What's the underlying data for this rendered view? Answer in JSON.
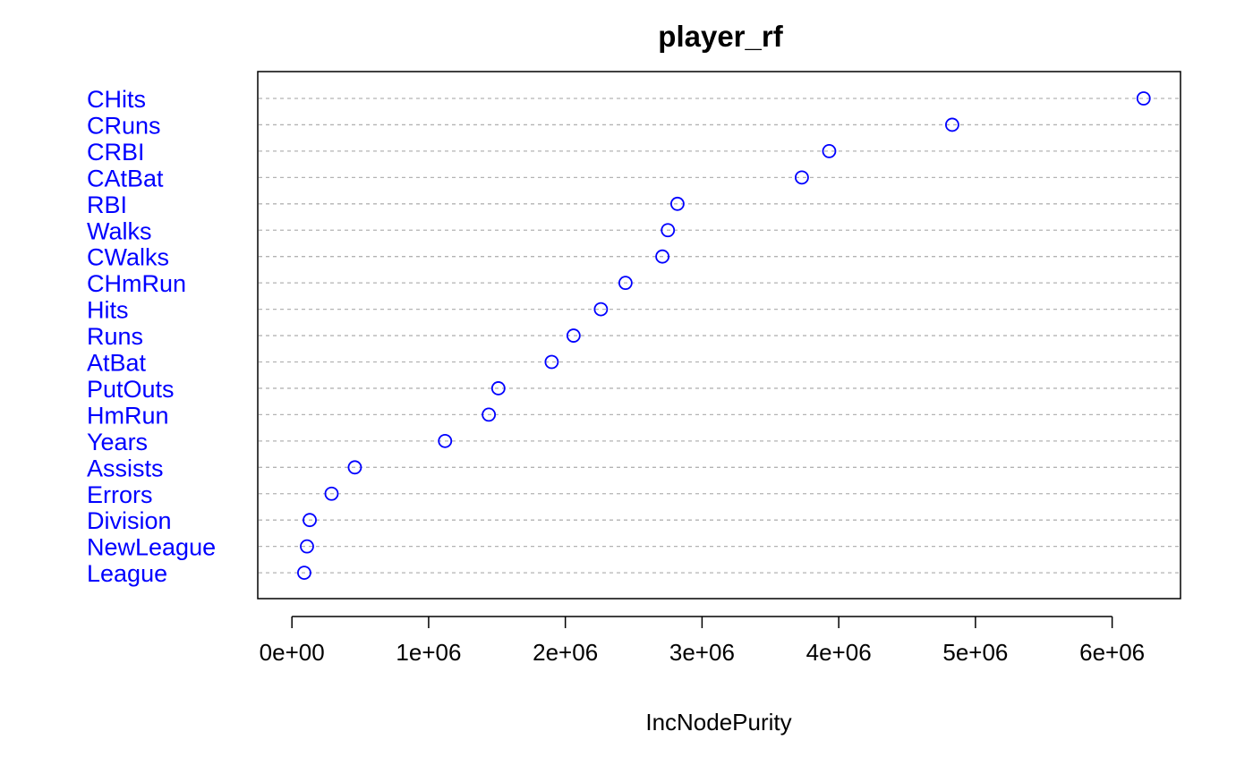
{
  "chart_data": {
    "type": "scatter",
    "subtype": "dotchart",
    "title": "player_rf",
    "xlabel": "IncNodePurity",
    "ylabel": "",
    "xlim": [
      -250000,
      6500000
    ],
    "x_ticks": [
      0,
      1000000,
      2000000,
      3000000,
      4000000,
      5000000,
      6000000
    ],
    "x_tick_labels": [
      "0e+00",
      "1e+06",
      "2e+06",
      "3e+06",
      "4e+06",
      "5e+06",
      "6e+06"
    ],
    "grid": "horizontal dashed per category",
    "label_color": "#0000ff",
    "point_color": "#0000ff",
    "categories": [
      "CHits",
      "CRuns",
      "CRBI",
      "CAtBat",
      "RBI",
      "Walks",
      "CWalks",
      "CHmRun",
      "Hits",
      "Runs",
      "AtBat",
      "PutOuts",
      "HmRun",
      "Years",
      "Assists",
      "Errors",
      "Division",
      "NewLeague",
      "League"
    ],
    "values": [
      6230000,
      4830000,
      3930000,
      3730000,
      2820000,
      2750000,
      2710000,
      2440000,
      2260000,
      2060000,
      1900000,
      1510000,
      1440000,
      1120000,
      460000,
      290000,
      130000,
      110000,
      90000
    ]
  }
}
